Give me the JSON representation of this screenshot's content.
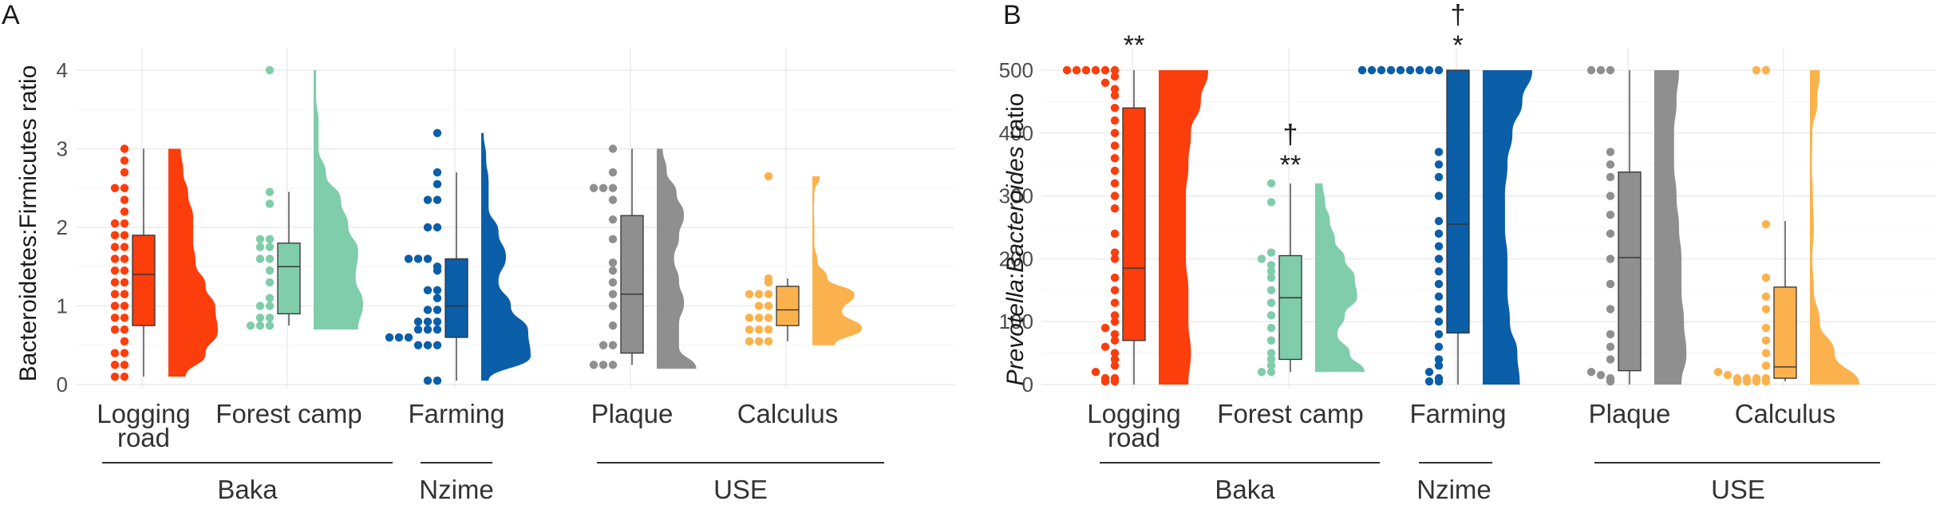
{
  "figure": {
    "panel_labels": [
      "A",
      "B"
    ],
    "group_labels": [
      "Baka",
      "Nzime",
      "USE"
    ]
  },
  "chart_data": [
    {
      "type": "raincloud",
      "panel": "A",
      "ylabel": "Bacteroidetes:Firmicutes ratio",
      "ylabel_italic": [],
      "ylim": [
        0,
        4.2
      ],
      "yticks": [
        0,
        1,
        2,
        3,
        4
      ],
      "grid": true,
      "categories": [
        "Logging road",
        "Forest camp",
        "Farming",
        "Plaque",
        "Calculus"
      ],
      "colors": [
        "#fc3d0c",
        "#7fcdaa",
        "#0b5ea8",
        "#8f8f8f",
        "#fbb24c"
      ],
      "groups": [
        {
          "name": "Baka",
          "categories": [
            "Logging road",
            "Forest camp"
          ]
        },
        {
          "name": "Nzime",
          "categories": [
            "Farming"
          ]
        },
        {
          "name": "USE",
          "categories": [
            "Plaque",
            "Calculus"
          ]
        }
      ],
      "boxes": [
        {
          "min": 0.1,
          "q1": 0.75,
          "median": 1.4,
          "q3": 1.9,
          "max": 3.0
        },
        {
          "min": 0.75,
          "q1": 0.9,
          "median": 1.5,
          "q3": 1.8,
          "max": 2.45
        },
        {
          "min": 0.05,
          "q1": 0.6,
          "median": 1.0,
          "q3": 1.6,
          "max": 2.7
        },
        {
          "min": 0.25,
          "q1": 0.4,
          "median": 1.15,
          "q3": 2.15,
          "max": 3.0
        },
        {
          "min": 0.55,
          "q1": 0.75,
          "median": 0.95,
          "q3": 1.25,
          "max": 1.35
        }
      ],
      "points": [
        [
          0.1,
          0.1,
          0.25,
          0.25,
          0.4,
          0.4,
          0.55,
          0.7,
          0.7,
          0.85,
          0.85,
          1.0,
          1.0,
          1.15,
          1.15,
          1.3,
          1.3,
          1.45,
          1.45,
          1.6,
          1.6,
          1.75,
          1.75,
          1.9,
          1.9,
          2.05,
          2.05,
          2.2,
          2.35,
          2.5,
          2.5,
          2.7,
          2.85,
          3.0
        ],
        [
          0.75,
          0.75,
          0.75,
          0.85,
          0.85,
          1.0,
          1.0,
          1.1,
          1.3,
          1.45,
          1.6,
          1.6,
          1.75,
          1.75,
          1.85,
          1.85,
          2.3,
          2.45,
          4.0
        ],
        [
          0.05,
          0.05,
          0.5,
          0.5,
          0.5,
          0.6,
          0.6,
          0.6,
          0.7,
          0.7,
          0.7,
          0.8,
          0.8,
          0.8,
          0.95,
          0.95,
          1.1,
          1.2,
          1.2,
          1.45,
          1.5,
          1.6,
          1.6,
          1.6,
          2.0,
          2.0,
          2.35,
          2.35,
          2.55,
          2.7,
          3.2
        ],
        [
          0.25,
          0.25,
          0.25,
          0.5,
          0.5,
          0.75,
          1.0,
          1.15,
          1.3,
          1.45,
          1.55,
          1.85,
          2.1,
          2.35,
          2.5,
          2.5,
          2.5,
          2.7,
          3.0
        ],
        [
          0.55,
          0.55,
          0.55,
          0.7,
          0.7,
          0.7,
          0.85,
          0.85,
          0.85,
          1.0,
          1.0,
          1.15,
          1.15,
          1.15,
          1.3,
          1.35,
          2.65
        ]
      ],
      "densities": [
        {
          "ymin": 0.1,
          "ymax": 3.0,
          "widths": [
            0.35,
            0.75,
            1.0,
            0.95,
            0.75,
            0.55,
            0.5,
            0.5,
            0.4,
            0.3,
            0.25
          ]
        },
        {
          "ymin": 0.7,
          "ymax": 4.0,
          "widths": [
            0.9,
            1.0,
            0.85,
            0.9,
            0.7,
            0.55,
            0.25,
            0.1,
            0.1,
            0.05,
            0.05
          ]
        },
        {
          "ymin": 0.05,
          "ymax": 3.2,
          "widths": [
            0.15,
            1.0,
            0.95,
            0.6,
            0.35,
            0.5,
            0.35,
            0.15,
            0.15,
            0.1,
            0.05
          ]
        },
        {
          "ymin": 0.2,
          "ymax": 3.0,
          "widths": [
            0.8,
            0.45,
            0.45,
            0.55,
            0.45,
            0.35,
            0.45,
            0.55,
            0.4,
            0.2,
            0.12
          ]
        },
        {
          "ymin": 0.5,
          "ymax": 2.65,
          "widths": [
            0.45,
            1.0,
            0.6,
            0.85,
            0.3,
            0.1,
            0.04,
            0.04,
            0.03,
            0.04,
            0.15
          ]
        }
      ],
      "significance": []
    },
    {
      "type": "raincloud",
      "panel": "B",
      "ylabel": "Prevotella:Bacteroides ratio",
      "ylabel_italic": [
        "Prevotella",
        "Bacteroides"
      ],
      "ylim": [
        0,
        520
      ],
      "yticks": [
        0,
        100,
        200,
        300,
        400,
        500
      ],
      "grid": true,
      "categories": [
        "Logging road",
        "Forest camp",
        "Farming",
        "Plaque",
        "Calculus"
      ],
      "colors": [
        "#fc3d0c",
        "#7fcdaa",
        "#0b5ea8",
        "#8f8f8f",
        "#fbb24c"
      ],
      "groups": [
        {
          "name": "Baka",
          "categories": [
            "Logging road",
            "Forest camp"
          ]
        },
        {
          "name": "Nzime",
          "categories": [
            "Farming"
          ]
        },
        {
          "name": "USE",
          "categories": [
            "Plaque",
            "Calculus"
          ]
        }
      ],
      "boxes": [
        {
          "min": 0,
          "q1": 70,
          "median": 185,
          "q3": 440,
          "max": 500
        },
        {
          "min": 20,
          "q1": 40,
          "median": 138,
          "q3": 205,
          "max": 320
        },
        {
          "min": 0,
          "q1": 82,
          "median": 255,
          "q3": 500,
          "max": 500
        },
        {
          "min": 0,
          "q1": 22,
          "median": 202,
          "q3": 338,
          "max": 500
        },
        {
          "min": 5,
          "q1": 10,
          "median": 28,
          "q3": 155,
          "max": 260
        }
      ],
      "points": [
        [
          5,
          5,
          10,
          10,
          20,
          30,
          40,
          50,
          60,
          70,
          80,
          90,
          100,
          110,
          130,
          150,
          170,
          200,
          210,
          240,
          280,
          300,
          320,
          340,
          360,
          380,
          400,
          420,
          440,
          460,
          470,
          480,
          490,
          500,
          500,
          500,
          500,
          500,
          500
        ],
        [
          20,
          20,
          30,
          40,
          50,
          70,
          90,
          110,
          130,
          150,
          170,
          180,
          190,
          200,
          210,
          290,
          320
        ],
        [
          5,
          5,
          10,
          20,
          30,
          40,
          60,
          80,
          100,
          120,
          140,
          160,
          180,
          200,
          220,
          240,
          260,
          300,
          330,
          350,
          370,
          500,
          500,
          500,
          500,
          500,
          500,
          500,
          500,
          500
        ],
        [
          5,
          10,
          15,
          20,
          40,
          60,
          80,
          120,
          160,
          200,
          240,
          270,
          300,
          330,
          350,
          370,
          500,
          500,
          500
        ],
        [
          5,
          5,
          5,
          5,
          10,
          10,
          10,
          10,
          15,
          20,
          30,
          50,
          70,
          90,
          120,
          140,
          170,
          255,
          500,
          500
        ]
      ],
      "densities": [
        {
          "ymin": 0,
          "ymax": 500,
          "widths": [
            0.6,
            0.65,
            0.6,
            0.6,
            0.55,
            0.55,
            0.55,
            0.6,
            0.65,
            0.85,
            1.0
          ]
        },
        {
          "ymin": 20,
          "ymax": 320,
          "widths": [
            1.0,
            0.7,
            0.45,
            0.6,
            0.85,
            0.8,
            0.6,
            0.4,
            0.3,
            0.2,
            0.15
          ]
        },
        {
          "ymin": 0,
          "ymax": 500,
          "widths": [
            0.75,
            0.7,
            0.55,
            0.5,
            0.5,
            0.45,
            0.45,
            0.5,
            0.6,
            0.8,
            1.0
          ]
        },
        {
          "ymin": 0,
          "ymax": 500,
          "widths": [
            0.55,
            0.65,
            0.6,
            0.55,
            0.55,
            0.5,
            0.45,
            0.4,
            0.4,
            0.45,
            0.5
          ]
        },
        {
          "ymin": 0,
          "ymax": 500,
          "widths": [
            1.0,
            0.5,
            0.2,
            0.08,
            0.05,
            0.08,
            0.06,
            0.04,
            0.05,
            0.15,
            0.2
          ]
        }
      ],
      "significance": [
        {
          "category": "Logging road",
          "text": "**"
        },
        {
          "category": "Forest camp",
          "text": "†"
        },
        {
          "category": "Forest camp",
          "text": "**"
        },
        {
          "category": "Farming",
          "text": "†"
        },
        {
          "category": "Farming",
          "text": "*"
        }
      ]
    }
  ]
}
